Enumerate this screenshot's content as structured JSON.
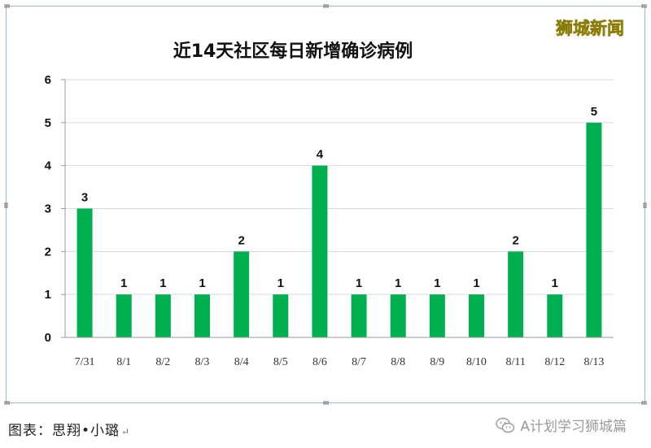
{
  "brand_watermark": "狮城新闻",
  "caption": {
    "text": "图表：思翔•小璐",
    "return_mark": "↵"
  },
  "footer_watermark": "A计划学习狮城篇",
  "colors": {
    "bar": "#00b050",
    "frame_border": "#9bb8cc",
    "brand": "#f3e233"
  },
  "chart_data": {
    "type": "bar",
    "title": "近14天社区每日新增确诊病例",
    "xlabel": "",
    "ylabel": "",
    "categories": [
      "7/31",
      "8/1",
      "8/2",
      "8/3",
      "8/4",
      "8/5",
      "8/6",
      "8/7",
      "8/8",
      "8/9",
      "8/10",
      "8/11",
      "8/12",
      "8/13"
    ],
    "values": [
      3,
      1,
      1,
      1,
      2,
      1,
      4,
      1,
      1,
      1,
      1,
      2,
      1,
      5
    ],
    "data_labels": [
      "3",
      "1",
      "1",
      "1",
      "2",
      "1",
      "4",
      "1",
      "1",
      "1",
      "1",
      "2",
      "1",
      "5"
    ],
    "yticks": [
      "0",
      "1",
      "2",
      "3",
      "4",
      "5",
      "6"
    ],
    "ylim": [
      0,
      6
    ],
    "grid": true,
    "legend": "none"
  }
}
